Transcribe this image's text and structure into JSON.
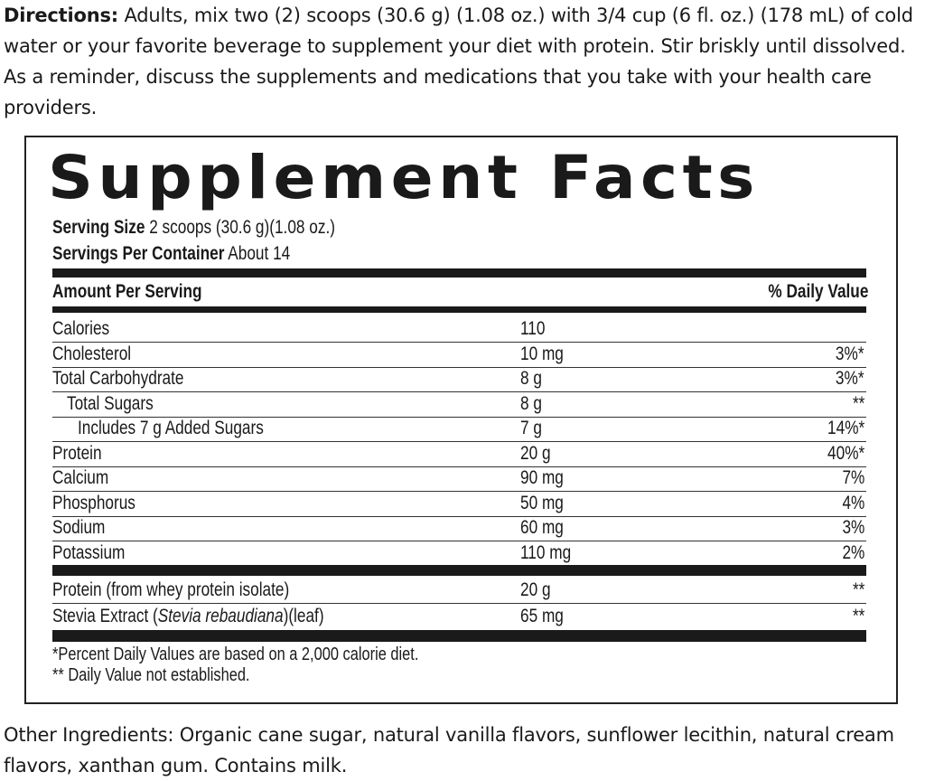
{
  "directions": {
    "label": "Directions:",
    "text": " Adults, mix two (2) scoops (30.6 g) (1.08 oz.) with 3/4 cup (6 fl. oz.) (178 mL) of cold water or your favorite beverage to supplement your diet with protein. Stir briskly until dissolved.  As a reminder, discuss the supplements and medications that you take with your health care providers."
  },
  "facts": {
    "title": "Supplement Facts",
    "serving_size_label": "Serving Size",
    "serving_size_value": " 2 scoops (30.6 g)(1.08 oz.)",
    "servings_label": "Servings Per Container",
    "servings_value": " About 14",
    "amount_header": "Amount Per Serving",
    "dv_header": "% Daily Value",
    "rows": [
      {
        "name": "Calories",
        "amount": "110",
        "dv": ""
      },
      {
        "name": "Cholesterol",
        "amount": "10 mg",
        "dv": "3%*"
      },
      {
        "name": "Total Carbohydrate",
        "amount": "8 g",
        "dv": "3%*"
      },
      {
        "name": "Total Sugars",
        "amount": "8 g",
        "dv": "**"
      },
      {
        "name": "Includes 7 g Added Sugars",
        "amount": "7 g",
        "dv": "14%*"
      },
      {
        "name": "Protein",
        "amount": "20 g",
        "dv": "40%*"
      },
      {
        "name": "Calcium",
        "amount": "90 mg",
        "dv": "7%"
      },
      {
        "name": "Phosphorus",
        "amount": "50 mg",
        "dv": "4%"
      },
      {
        "name": "Sodium",
        "amount": "60 mg",
        "dv": "3%"
      },
      {
        "name": "Potassium",
        "amount": "110 mg",
        "dv": "2%"
      }
    ],
    "rows2": [
      {
        "name": "Protein (from whey protein isolate)",
        "amount": "20 g",
        "dv": "**"
      },
      {
        "name_pre": "Stevia Extract (",
        "name_italic": "Stevia rebaudiana",
        "name_post": ")(leaf)",
        "amount": "65 mg",
        "dv": "**"
      }
    ],
    "footnote1": "*Percent Daily Values are based on a 2,000 calorie diet.",
    "footnote2": "** Daily Value not established."
  },
  "other_ingredients": "Other Ingredients: Organic cane sugar, natural vanilla flavors, sunflower lecithin, natural cream flavors, xanthan gum. Contains milk."
}
